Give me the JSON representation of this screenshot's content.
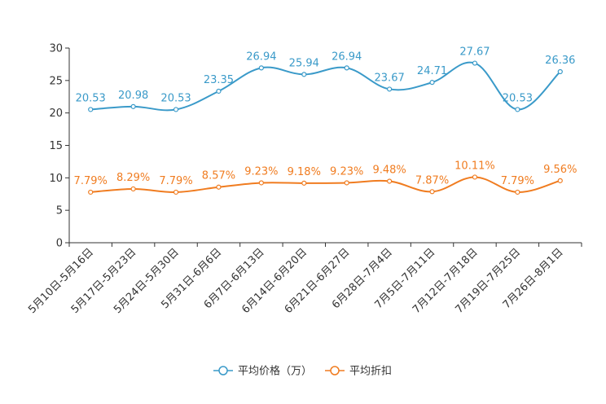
{
  "chart_data": {
    "type": "line",
    "categories": [
      "5月10日-5月16日",
      "5月17日-5月23日",
      "5月24日-5月30日",
      "5月31日-6月6日",
      "6月7日-6月13日",
      "6月14日-6月20日",
      "6月21日-6月27日",
      "6月28日-7月4日",
      "7月5日-7月11日",
      "7月12日-7月18日",
      "7月19日-7月25日",
      "7月26日-8月1日"
    ],
    "ylim": [
      0,
      30
    ],
    "yticks": [
      0,
      5,
      10,
      15,
      20,
      25,
      30
    ],
    "ytick_labels": [
      "0",
      "5",
      "10",
      "15",
      "20",
      "25",
      "30"
    ],
    "series": [
      {
        "name": "平均价格（万）",
        "color": "#3a9ac9",
        "values": [
          20.53,
          20.98,
          20.53,
          23.35,
          26.94,
          25.94,
          26.94,
          23.67,
          24.71,
          27.67,
          20.53,
          26.36
        ],
        "labels": [
          "20.53",
          "20.98",
          "20.53",
          "23.35",
          "26.94",
          "25.94",
          "26.94",
          "23.67",
          "24.71",
          "27.67",
          "20.53",
          "26.36"
        ]
      },
      {
        "name": "平均折扣",
        "color": "#f07c20",
        "values": [
          7.79,
          8.29,
          7.79,
          8.57,
          9.23,
          9.18,
          9.23,
          9.48,
          7.87,
          10.11,
          7.79,
          9.56
        ],
        "labels": [
          "7.79%",
          "8.29%",
          "7.79%",
          "8.57%",
          "9.23%",
          "9.18%",
          "9.23%",
          "9.48%",
          "7.87%",
          "10.11%",
          "7.79%",
          "9.56%"
        ]
      }
    ],
    "legend_position": "bottom-center",
    "grid": false
  }
}
